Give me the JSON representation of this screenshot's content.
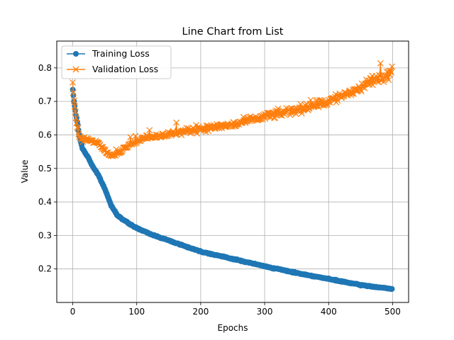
{
  "chart_data": {
    "type": "line",
    "title": "Line Chart from List",
    "xlabel": "Epochs",
    "ylabel": "Value",
    "xlim": [
      -25,
      525
    ],
    "ylim": [
      0.1,
      0.88
    ],
    "xticks": [
      0,
      100,
      200,
      300,
      400,
      500
    ],
    "yticks": [
      0.2,
      0.3,
      0.4,
      0.5,
      0.6,
      0.7,
      0.8
    ],
    "grid": true,
    "legend_position": "top-left",
    "series": [
      {
        "name": "Training Loss",
        "color": "#1f77b4",
        "marker": "circle",
        "anchors": {
          "x": [
            0,
            2,
            5,
            8,
            10,
            15,
            20,
            25,
            30,
            40,
            50,
            60,
            70,
            80,
            90,
            100,
            120,
            150,
            180,
            200,
            250,
            300,
            350,
            400,
            450,
            500
          ],
          "y": [
            0.735,
            0.7,
            0.66,
            0.63,
            0.6,
            0.56,
            0.545,
            0.53,
            0.51,
            0.48,
            0.44,
            0.39,
            0.36,
            0.345,
            0.333,
            0.322,
            0.305,
            0.285,
            0.265,
            0.252,
            0.23,
            0.208,
            0.188,
            0.17,
            0.152,
            0.14
          ]
        }
      },
      {
        "name": "Validation Loss",
        "color": "#ff7f0e",
        "marker": "x",
        "anchors": {
          "x": [
            0,
            2,
            5,
            8,
            10,
            15,
            20,
            30,
            40,
            50,
            60,
            70,
            80,
            90,
            100,
            120,
            150,
            180,
            200,
            250,
            300,
            350,
            400,
            450,
            480,
            500
          ],
          "y": [
            0.755,
            0.7,
            0.65,
            0.61,
            0.595,
            0.585,
            0.585,
            0.582,
            0.575,
            0.553,
            0.537,
            0.545,
            0.558,
            0.572,
            0.582,
            0.595,
            0.603,
            0.612,
            0.618,
            0.63,
            0.655,
            0.675,
            0.7,
            0.74,
            0.772,
            0.785
          ]
        }
      }
    ]
  }
}
